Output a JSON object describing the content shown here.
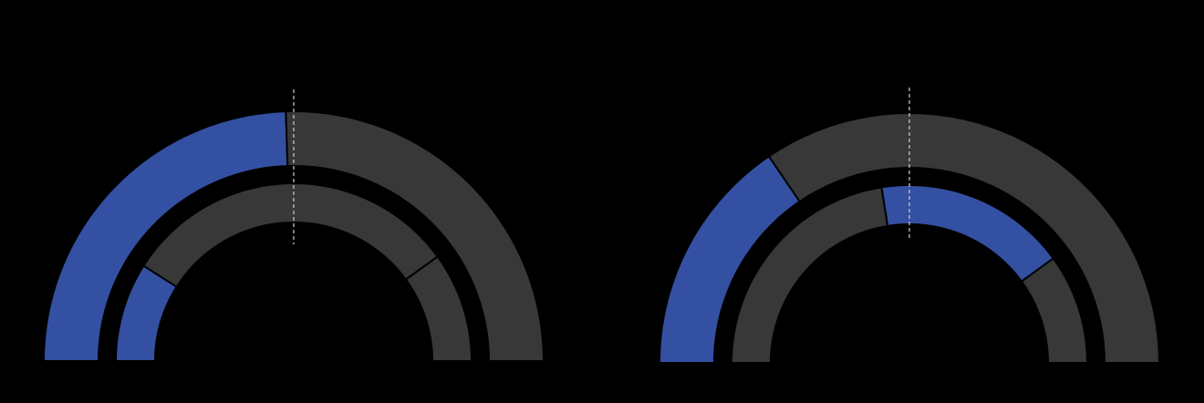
{
  "chart_data": [
    {
      "type": "semi-donut",
      "description_free": true,
      "rings": [
        {
          "ring": "outer",
          "segments": [
            {
              "name": "highlighted",
              "start_fraction": 0.0,
              "end_fraction": 0.49
            },
            {
              "name": "remainder",
              "start_fraction": 0.49,
              "end_fraction": 1.0
            }
          ]
        },
        {
          "ring": "inner",
          "segments": [
            {
              "name": "highlighted",
              "start_fraction": 0.0,
              "end_fraction": 0.18
            },
            {
              "name": "remainder-a",
              "start_fraction": 0.18,
              "end_fraction": 0.8
            },
            {
              "name": "remainder-b",
              "start_fraction": 0.8,
              "end_fraction": 1.0
            }
          ]
        }
      ],
      "reference_line": {
        "style": "dashed",
        "at_fraction": 0.5
      }
    },
    {
      "type": "semi-donut",
      "rings": [
        {
          "ring": "outer",
          "segments": [
            {
              "name": "highlighted",
              "start_fraction": 0.0,
              "end_fraction": 0.31
            },
            {
              "name": "remainder",
              "start_fraction": 0.31,
              "end_fraction": 1.0
            }
          ]
        },
        {
          "ring": "inner",
          "segments": [
            {
              "name": "remainder-a",
              "start_fraction": 0.0,
              "end_fraction": 0.45
            },
            {
              "name": "highlighted",
              "start_fraction": 0.45,
              "end_fraction": 0.8
            },
            {
              "name": "remainder-b",
              "start_fraction": 0.8,
              "end_fraction": 1.0
            }
          ]
        }
      ],
      "reference_line": {
        "style": "dashed",
        "at_fraction": 0.5
      }
    }
  ],
  "colors": {
    "background": "#000000",
    "highlight": "#3450a2",
    "base": "#383838",
    "separator": "#000000",
    "reference_line": "#cfcfcf"
  }
}
